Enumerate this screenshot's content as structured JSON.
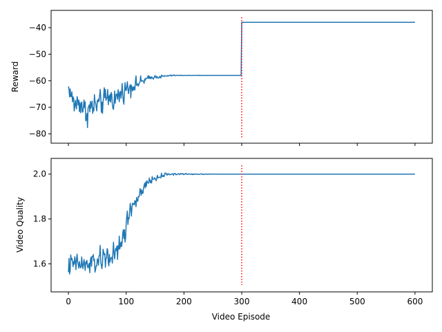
{
  "figure": {
    "xlabel": "Video Episode"
  },
  "colors": {
    "series": "#1f77b4",
    "marker_line": "#ff0000",
    "axes": "#000000",
    "background": "#ffffff"
  },
  "chart_data": [
    {
      "type": "line",
      "ylabel": "Reward",
      "xlim": [
        -30,
        630
      ],
      "ylim": [
        -83.5,
        -33.5
      ],
      "x_ticks": [
        0,
        100,
        200,
        300,
        400,
        500,
        600
      ],
      "x_tick_labels_visible": false,
      "y_ticks": [
        -80,
        -70,
        -60,
        -50,
        -40
      ],
      "y_tick_labels": [
        "−80",
        "−70",
        "−60",
        "−50",
        "−40"
      ],
      "grid": false,
      "series": [
        {
          "x": [
            0,
            10,
            20,
            30,
            40,
            50,
            60,
            70,
            80,
            90,
            100,
            110,
            120,
            130,
            140,
            150,
            160,
            170,
            180,
            190,
            200,
            210,
            220,
            230,
            240,
            250,
            260,
            270,
            280,
            290,
            299,
            300,
            310,
            350,
            400,
            450,
            500,
            550,
            600
          ],
          "values": [
            -62.5,
            -69,
            -68,
            -72,
            -70,
            -69,
            -68,
            -66,
            -67,
            -65,
            -63,
            -62,
            -61,
            -60,
            -59,
            -58.5,
            -58.5,
            -58.2,
            -58,
            -58,
            -58,
            -58,
            -58,
            -58,
            -58,
            -58,
            -58,
            -58,
            -58,
            -58,
            -58,
            -38,
            -38,
            -38,
            -38,
            -38,
            -38,
            -38,
            -38
          ],
          "noise_amplitude": [
            3.5,
            7,
            7,
            8,
            8,
            7,
            7,
            7,
            6.5,
            6,
            5.5,
            4.5,
            3.5,
            2.5,
            1.5,
            1,
            1,
            0.6,
            0.4,
            0.2,
            0.15,
            0.1,
            0.1,
            0.1,
            0.05,
            0,
            0,
            0,
            0,
            0,
            0,
            0,
            0,
            0,
            0,
            0,
            0,
            0,
            0
          ]
        }
      ],
      "vlines": [
        {
          "x": 300,
          "style": "dotted"
        }
      ]
    },
    {
      "type": "line",
      "ylabel": "Video Quality",
      "xlim": [
        -30,
        630
      ],
      "ylim": [
        1.475,
        2.07
      ],
      "x_ticks": [
        0,
        100,
        200,
        300,
        400,
        500,
        600
      ],
      "x_tick_labels": [
        "0",
        "100",
        "200",
        "300",
        "400",
        "500",
        "600"
      ],
      "y_ticks": [
        1.6,
        1.8,
        2.0
      ],
      "y_tick_labels": [
        "1.6",
        "1.8",
        "2.0"
      ],
      "grid": false,
      "series": [
        {
          "x": [
            0,
            10,
            20,
            30,
            40,
            50,
            60,
            70,
            80,
            90,
            100,
            110,
            120,
            130,
            140,
            150,
            160,
            170,
            180,
            190,
            200,
            220,
            240,
            260,
            280,
            300,
            350,
            400,
            450,
            500,
            550,
            600
          ],
          "values": [
            1.59,
            1.6,
            1.6,
            1.59,
            1.6,
            1.61,
            1.62,
            1.64,
            1.63,
            1.68,
            1.77,
            1.86,
            1.89,
            1.93,
            1.97,
            1.98,
            1.99,
            2.0,
            2.0,
            2.0,
            2.0,
            2.0,
            2.0,
            2.0,
            2.0,
            2.0,
            2.0,
            2.0,
            2.0,
            2.0,
            2.0,
            2.0
          ],
          "noise_amplitude": [
            0.07,
            0.07,
            0.07,
            0.07,
            0.08,
            0.08,
            0.08,
            0.09,
            0.09,
            0.09,
            0.09,
            0.07,
            0.05,
            0.04,
            0.03,
            0.02,
            0.015,
            0.01,
            0.008,
            0.006,
            0.004,
            0.003,
            0.002,
            0,
            0,
            0,
            0,
            0,
            0,
            0,
            0,
            0
          ]
        }
      ],
      "vlines": [
        {
          "x": 300,
          "style": "dotted"
        }
      ]
    }
  ]
}
